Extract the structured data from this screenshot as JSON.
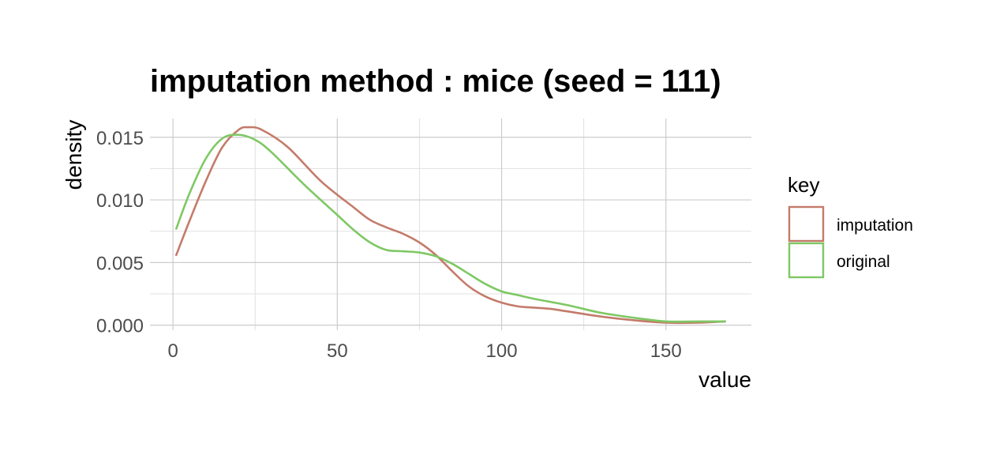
{
  "chart_data": {
    "type": "line",
    "title": "imputation method : mice (seed = 111)",
    "xlabel": "value",
    "ylabel": "density",
    "xlim": [
      -7,
      176
    ],
    "ylim": [
      -0.0004,
      0.0165
    ],
    "x_ticks": [
      0,
      50,
      100,
      150
    ],
    "x_tick_labels": [
      "0",
      "50",
      "100",
      "150"
    ],
    "y_ticks": [
      0,
      0.005,
      0.01,
      0.015
    ],
    "y_tick_labels": [
      "0.000",
      "0.005",
      "0.010",
      "0.015"
    ],
    "grid": true,
    "legend": {
      "title": "key",
      "position": "right"
    },
    "series": [
      {
        "name": "imputation",
        "color": "#c47b6a",
        "points": [
          [
            1,
            0.0056
          ],
          [
            5,
            0.0083
          ],
          [
            10,
            0.0115
          ],
          [
            15,
            0.0142
          ],
          [
            20,
            0.0156
          ],
          [
            23,
            0.0158
          ],
          [
            27,
            0.0156
          ],
          [
            35,
            0.0142
          ],
          [
            45,
            0.0115
          ],
          [
            55,
            0.0094
          ],
          [
            60,
            0.0084
          ],
          [
            65,
            0.0078
          ],
          [
            70,
            0.0073
          ],
          [
            75,
            0.0066
          ],
          [
            80,
            0.0056
          ],
          [
            85,
            0.0043
          ],
          [
            90,
            0.0031
          ],
          [
            95,
            0.0023
          ],
          [
            100,
            0.0018
          ],
          [
            105,
            0.0015
          ],
          [
            110,
            0.0014
          ],
          [
            115,
            0.0013
          ],
          [
            120,
            0.0011
          ],
          [
            130,
            0.0007
          ],
          [
            140,
            0.0004
          ],
          [
            150,
            0.0002
          ],
          [
            160,
            0.0002
          ],
          [
            168,
            0.0003
          ]
        ]
      },
      {
        "name": "original",
        "color": "#7ec864",
        "points": [
          [
            1,
            0.0077
          ],
          [
            5,
            0.0105
          ],
          [
            10,
            0.0133
          ],
          [
            15,
            0.0149
          ],
          [
            20,
            0.0152
          ],
          [
            25,
            0.0148
          ],
          [
            30,
            0.0138
          ],
          [
            40,
            0.0112
          ],
          [
            50,
            0.0088
          ],
          [
            55,
            0.0076
          ],
          [
            60,
            0.0066
          ],
          [
            65,
            0.006
          ],
          [
            70,
            0.0059
          ],
          [
            75,
            0.0058
          ],
          [
            80,
            0.0055
          ],
          [
            85,
            0.0049
          ],
          [
            90,
            0.0041
          ],
          [
            95,
            0.0033
          ],
          [
            100,
            0.0027
          ],
          [
            105,
            0.0024
          ],
          [
            110,
            0.0021
          ],
          [
            120,
            0.0016
          ],
          [
            130,
            0.001
          ],
          [
            140,
            0.0006
          ],
          [
            150,
            0.0003
          ],
          [
            160,
            0.0003
          ],
          [
            168,
            0.0003
          ]
        ]
      }
    ]
  }
}
